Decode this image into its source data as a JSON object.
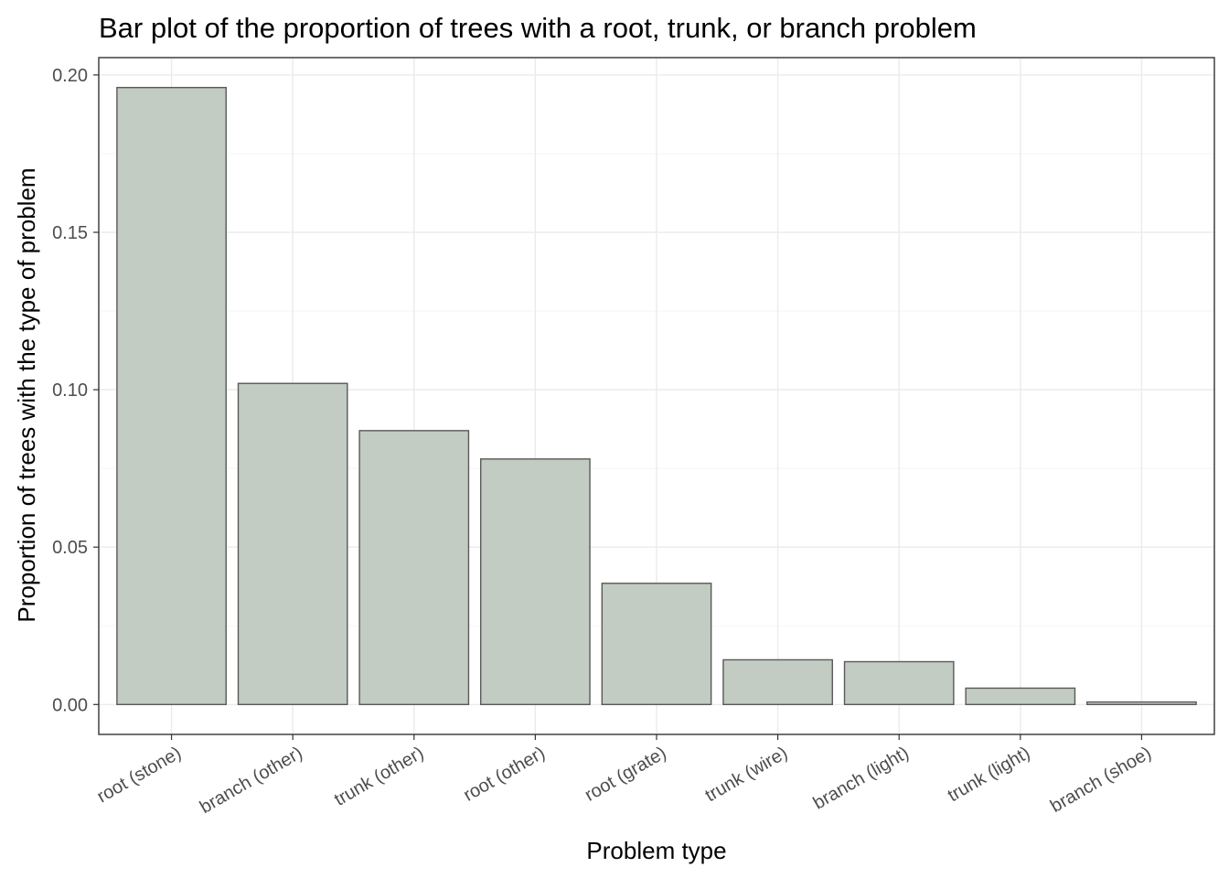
{
  "chart_data": {
    "type": "bar",
    "title": "Bar plot of the proportion of trees with a root, trunk, or branch problem",
    "xlabel": "Problem type",
    "ylabel": "Proportion of trees with the type of problem",
    "categories": [
      "root (stone)",
      "branch (other)",
      "trunk (other)",
      "root (other)",
      "root (grate)",
      "trunk (wire)",
      "branch (light)",
      "trunk (light)",
      "branch (shoe)"
    ],
    "values": [
      0.196,
      0.102,
      0.087,
      0.078,
      0.0385,
      0.0142,
      0.0136,
      0.0052,
      0.0008
    ],
    "ylim": [
      -0.0095,
      0.2055
    ],
    "yticks": [
      0.0,
      0.05,
      0.1,
      0.15,
      0.2
    ],
    "ytick_labels": [
      "0.00",
      "0.05",
      "0.10",
      "0.15",
      "0.20"
    ],
    "grid": true,
    "legend": "none",
    "colors": {
      "bar_fill": "#c2ccc2",
      "bar_stroke": "#595959"
    }
  }
}
